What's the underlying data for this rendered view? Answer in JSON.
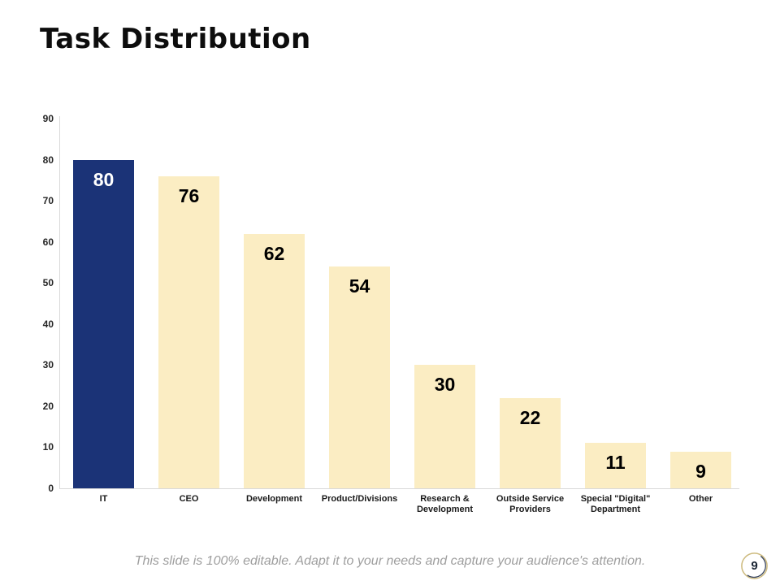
{
  "slide": {
    "title": "Task Distribution",
    "footer": "This slide is 100% editable.  Adapt it to your needs and capture your audience's attention.",
    "page_number": "9"
  },
  "colors": {
    "highlight_bar": "#1b3377",
    "bar_fill": "#fbedc3",
    "axis_line": "#d9d9d9",
    "value_label": "#000000",
    "value_label_on_highlight": "#ffffff",
    "title_text": "#0d0d0d",
    "footer_text": "#9e9e9e",
    "badge_ring_gold": "#cdba7d",
    "badge_arc_dark": "#39455f"
  },
  "chart_data": {
    "type": "bar",
    "categories": [
      "IT",
      "CEO",
      "Development",
      "Product/Divisions",
      "Research & Development",
      "Outside Service Providers",
      "Special \"Digital\" Department",
      "Other"
    ],
    "values": [
      80,
      76,
      62,
      54,
      30,
      22,
      11,
      9
    ],
    "highlight_index": 0,
    "title": "",
    "xlabel": "",
    "ylabel": "",
    "ylim": [
      0,
      90
    ],
    "ytick_step": 10,
    "ytick_labels": [
      "0",
      "10",
      "20",
      "30",
      "40",
      "50",
      "60",
      "70",
      "80",
      "90"
    ],
    "grid": false,
    "legend": "none",
    "value_label_position": "inside-top"
  }
}
